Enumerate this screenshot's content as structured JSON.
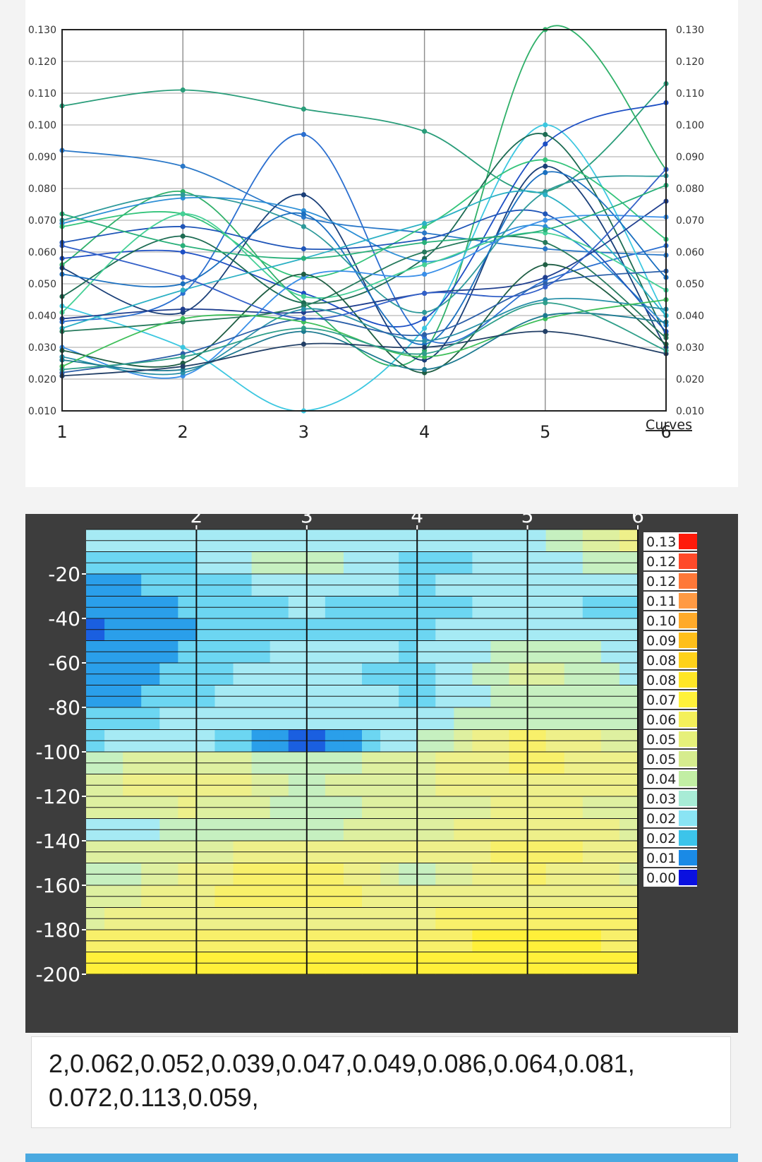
{
  "colors": {
    "page_bg": "#f3f3f3",
    "accent_bar": "#4aa9e0",
    "contour_bg": "#3d3d3d"
  },
  "chart_data": [
    {
      "type": "line",
      "x": [
        1,
        2,
        3,
        4,
        5,
        6
      ],
      "xlim": [
        1,
        6
      ],
      "ylim": [
        0.01,
        0.13
      ],
      "y_ticks": [
        "0.130",
        "0.120",
        "0.110",
        "0.100",
        "0.090",
        "0.080",
        "0.070",
        "0.060",
        "0.050",
        "0.040",
        "0.030",
        "0.020",
        "0.010"
      ],
      "y_tick_values": [
        0.13,
        0.12,
        0.11,
        0.1,
        0.09,
        0.08,
        0.07,
        0.06,
        0.05,
        0.04,
        0.03,
        0.02,
        0.01
      ],
      "x_ticks": [
        "1",
        "2",
        "3",
        "4",
        "5",
        "6"
      ],
      "legend_label": "Curves",
      "legend_position": "bottom-right",
      "grid": true,
      "series": [
        {
          "color": "#2a9d7a",
          "values": [
            0.106,
            0.111,
            0.105,
            0.098,
            0.079,
            0.113
          ]
        },
        {
          "color": "#2fb069",
          "values": [
            0.056,
            0.079,
            0.044,
            0.029,
            0.13,
            0.086
          ]
        },
        {
          "color": "#2a78c8",
          "values": [
            0.092,
            0.087,
            0.071,
            0.066,
            0.061,
            0.059
          ]
        },
        {
          "color": "#2b6fd0",
          "values": [
            0.038,
            0.047,
            0.097,
            0.033,
            0.051,
            0.062
          ]
        },
        {
          "color": "#3cc7e0",
          "values": [
            0.043,
            0.03,
            0.01,
            0.036,
            0.1,
            0.04
          ]
        },
        {
          "color": "#1d4fc4",
          "values": [
            0.058,
            0.06,
            0.047,
            0.039,
            0.094,
            0.107
          ]
        },
        {
          "color": "#1a3f78",
          "values": [
            0.055,
            0.041,
            0.078,
            0.026,
            0.087,
            0.03
          ]
        },
        {
          "color": "#1c6b52",
          "values": [
            0.046,
            0.065,
            0.044,
            0.058,
            0.097,
            0.034
          ]
        },
        {
          "color": "#2d8fd6",
          "values": [
            0.069,
            0.077,
            0.073,
            0.057,
            0.068,
            0.037
          ]
        },
        {
          "color": "#34c47b",
          "values": [
            0.068,
            0.072,
            0.052,
            0.068,
            0.089,
            0.064
          ]
        },
        {
          "color": "#1f55b8",
          "values": [
            0.063,
            0.068,
            0.061,
            0.064,
            0.072,
            0.035
          ]
        },
        {
          "color": "#2e9a9a",
          "values": [
            0.07,
            0.078,
            0.068,
            0.041,
            0.079,
            0.084
          ]
        },
        {
          "color": "#45d096",
          "values": [
            0.041,
            0.072,
            0.046,
            0.056,
            0.066,
            0.048
          ]
        },
        {
          "color": "#1a6fc0",
          "values": [
            0.053,
            0.05,
            0.072,
            0.031,
            0.085,
            0.052
          ]
        },
        {
          "color": "#2bb0c4",
          "values": [
            0.036,
            0.048,
            0.058,
            0.069,
            0.078,
            0.04
          ]
        },
        {
          "color": "#203f8f",
          "values": [
            0.039,
            0.042,
            0.041,
            0.047,
            0.052,
            0.076
          ]
        },
        {
          "color": "#267a5c",
          "values": [
            0.035,
            0.038,
            0.043,
            0.06,
            0.063,
            0.033
          ]
        },
        {
          "color": "#3a8fe8",
          "values": [
            0.03,
            0.021,
            0.052,
            0.053,
            0.07,
            0.071
          ]
        },
        {
          "color": "#1f5e44",
          "values": [
            0.029,
            0.025,
            0.053,
            0.022,
            0.056,
            0.031
          ]
        },
        {
          "color": "#2890a8",
          "values": [
            0.027,
            0.022,
            0.042,
            0.032,
            0.045,
            0.042
          ]
        },
        {
          "color": "#2b5fa8",
          "values": [
            0.022,
            0.028,
            0.039,
            0.034,
            0.05,
            0.054
          ]
        },
        {
          "color": "#3fbf5a",
          "values": [
            0.024,
            0.039,
            0.038,
            0.027,
            0.039,
            0.045
          ]
        },
        {
          "color": "#1c7a90",
          "values": [
            0.026,
            0.023,
            0.035,
            0.023,
            0.04,
            0.038
          ]
        },
        {
          "color": "#223f66",
          "values": [
            0.021,
            0.024,
            0.031,
            0.03,
            0.035,
            0.028
          ]
        },
        {
          "color": "#2f9f8a",
          "values": [
            0.023,
            0.027,
            0.036,
            0.028,
            0.044,
            0.029
          ]
        },
        {
          "color": "#3360c8",
          "values": [
            0.062,
            0.052,
            0.039,
            0.047,
            0.049,
            0.086
          ]
        },
        {
          "color": "#2ab07a",
          "values": [
            0.072,
            0.062,
            0.058,
            0.063,
            0.067,
            0.081
          ]
        }
      ]
    },
    {
      "type": "heatmap",
      "x_ticks": [
        "2",
        "3",
        "4",
        "5",
        "6"
      ],
      "x_tick_values": [
        2,
        3,
        4,
        5,
        6
      ],
      "xlim": [
        1,
        6
      ],
      "y_ticks": [
        "-20",
        "-40",
        "-60",
        "-80",
        "-100",
        "-120",
        "-140",
        "-160",
        "-180",
        "-200"
      ],
      "y_tick_values": [
        -20,
        -40,
        -60,
        -80,
        -100,
        -120,
        -140,
        -160,
        -180,
        -200
      ],
      "ylim": [
        0,
        -200
      ],
      "colorbar_labels": [
        "0.13",
        "0.12",
        "0.12",
        "0.11",
        "0.10",
        "0.09",
        "0.08",
        "0.08",
        "0.07",
        "0.06",
        "0.05",
        "0.05",
        "0.04",
        "0.03",
        "0.02",
        "0.02",
        "0.01",
        "0.00"
      ],
      "colorbar_colors": [
        "#ff1a0a",
        "#ff4a2a",
        "#ff7838",
        "#ff9a44",
        "#ffaa2a",
        "#ffbf1a",
        "#ffd21a",
        "#ffe626",
        "#fff23a",
        "#f4f05a",
        "#e6f07a",
        "#d6ec8e",
        "#c2eea4",
        "#a8ecd6",
        "#8ae4f4",
        "#3cc4ea",
        "#1a8ae6",
        "#0a10e0"
      ],
      "band_colors": [
        "#1a5fe0",
        "#2a9fea",
        "#6cd6f2",
        "#a6eaf4",
        "#c6f0c0",
        "#def0a0",
        "#eef08a",
        "#f8f06a",
        "#fff03a"
      ],
      "row_depths": [
        -10,
        -20,
        -30,
        -40,
        -50,
        -60,
        -70,
        -80,
        -90,
        -100,
        -110,
        -120,
        -130,
        -140,
        -150,
        -160,
        -170,
        -180,
        -190,
        -200
      ],
      "values": [
        [
          0.03,
          0.03,
          0.034,
          0.03,
          0.032,
          0.056
        ],
        [
          0.026,
          0.026,
          0.044,
          0.022,
          0.03,
          0.04
        ],
        [
          0.012,
          0.022,
          0.032,
          0.026,
          0.03,
          0.032
        ],
        [
          0.008,
          0.02,
          0.028,
          0.02,
          0.032,
          0.022
        ],
        [
          0.008,
          0.018,
          0.024,
          0.024,
          0.036,
          0.03
        ],
        [
          0.008,
          0.02,
          0.03,
          0.026,
          0.042,
          0.032
        ],
        [
          0.008,
          0.022,
          0.034,
          0.02,
          0.048,
          0.034
        ],
        [
          0.012,
          0.024,
          0.036,
          0.024,
          0.04,
          0.036
        ],
        [
          0.02,
          0.03,
          0.032,
          0.03,
          0.044,
          0.04
        ],
        [
          0.026,
          0.03,
          0.004,
          0.036,
          0.068,
          0.044
        ],
        [
          0.04,
          0.052,
          0.038,
          0.05,
          0.066,
          0.056
        ],
        [
          0.048,
          0.062,
          0.042,
          0.052,
          0.058,
          0.054
        ],
        [
          0.046,
          0.054,
          0.04,
          0.048,
          0.056,
          0.05
        ],
        [
          0.032,
          0.038,
          0.042,
          0.05,
          0.06,
          0.052
        ],
        [
          0.048,
          0.052,
          0.056,
          0.056,
          0.066,
          0.058
        ],
        [
          0.036,
          0.056,
          0.072,
          0.04,
          0.064,
          0.052
        ],
        [
          0.044,
          0.06,
          0.07,
          0.054,
          0.06,
          0.058
        ],
        [
          0.052,
          0.058,
          0.062,
          0.06,
          0.07,
          0.064
        ],
        [
          0.064,
          0.066,
          0.066,
          0.068,
          0.074,
          0.07
        ],
        [
          0.072,
          0.074,
          0.074,
          0.08,
          0.082,
          0.078
        ]
      ]
    }
  ],
  "readout": {
    "text": "2,0.062,0.052,0.039,0.047,0.049,0.086,0.064,0.081, 0.072,0.113,0.059,"
  }
}
